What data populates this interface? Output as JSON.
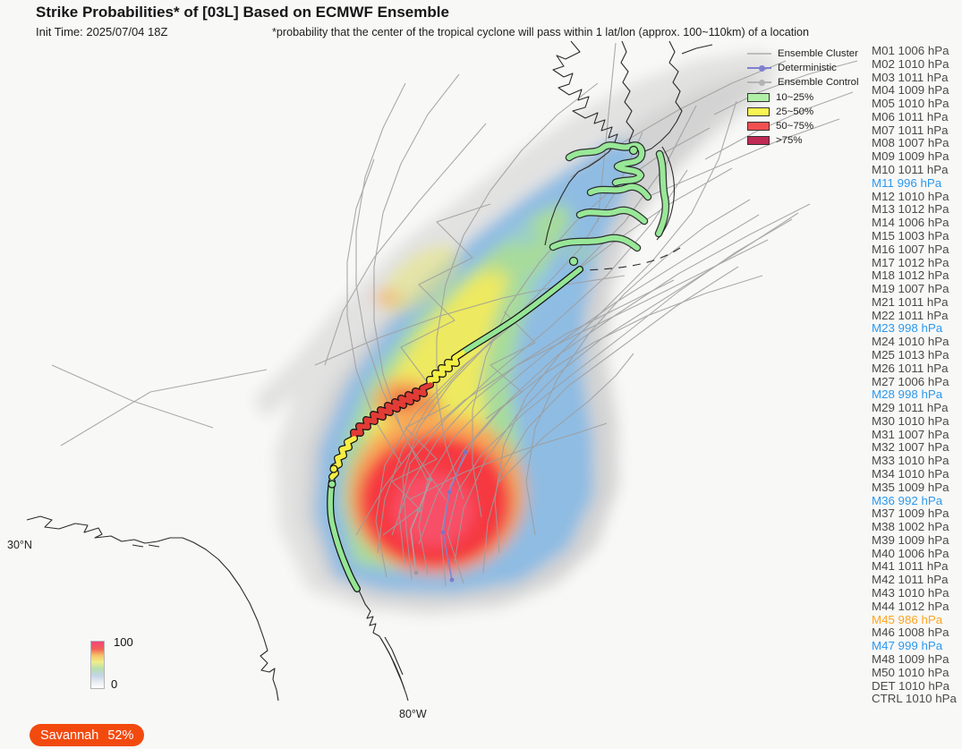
{
  "header": {
    "title": "Strike Probabilities* of [03L] Based on ECMWF Ensemble",
    "init_time": "Init Time: 2025/07/04 18Z",
    "note": "*probability that the center of the tropical cyclone will pass within 1 lat/lon (approx. 100~110km) of a location"
  },
  "legend": {
    "lines": [
      {
        "label": "Ensemble Cluster",
        "color": "#bdbdbd",
        "marker": "none"
      },
      {
        "label": "Deterministic",
        "color": "#7f7fd0",
        "marker": "dot"
      },
      {
        "label": "Ensemble Control",
        "color": "#b3b3b3",
        "marker": "dot"
      }
    ],
    "patches": [
      {
        "label": "10~25%",
        "color": "#b0f0a6"
      },
      {
        "label": "25~50%",
        "color": "#f8f452"
      },
      {
        "label": "50~75%",
        "color": "#f25050"
      },
      {
        "label": ">75%",
        "color": "#c02a55"
      }
    ]
  },
  "colorbar": {
    "max": "100",
    "min": "0"
  },
  "map_labels": {
    "lat": "30°N",
    "lon": "80°W"
  },
  "city_badge": {
    "name": "Savannah",
    "value": "52%",
    "color": "#f24a0e"
  },
  "highlight_colors": {
    "default": "#4a4a4a",
    "blue": "#2b99ee",
    "orange": "#ffa51f"
  },
  "members": [
    {
      "label": "M01 1006 hPa",
      "highlight": "none"
    },
    {
      "label": "M02 1010 hPa",
      "highlight": "none"
    },
    {
      "label": "M03 1011 hPa",
      "highlight": "none"
    },
    {
      "label": "M04 1009 hPa",
      "highlight": "none"
    },
    {
      "label": "M05 1010 hPa",
      "highlight": "none"
    },
    {
      "label": "M06 1011 hPa",
      "highlight": "none"
    },
    {
      "label": "M07 1011 hPa",
      "highlight": "none"
    },
    {
      "label": "M08 1007 hPa",
      "highlight": "none"
    },
    {
      "label": "M09 1009 hPa",
      "highlight": "none"
    },
    {
      "label": "M10 1011 hPa",
      "highlight": "none"
    },
    {
      "label": "M11 996 hPa",
      "highlight": "blue"
    },
    {
      "label": "M12 1010 hPa",
      "highlight": "none"
    },
    {
      "label": "M13 1012 hPa",
      "highlight": "none"
    },
    {
      "label": "M14 1006 hPa",
      "highlight": "none"
    },
    {
      "label": "M15 1003 hPa",
      "highlight": "none"
    },
    {
      "label": "M16 1007 hPa",
      "highlight": "none"
    },
    {
      "label": "M17 1012 hPa",
      "highlight": "none"
    },
    {
      "label": "M18 1012 hPa",
      "highlight": "none"
    },
    {
      "label": "M19 1007 hPa",
      "highlight": "none"
    },
    {
      "label": "M21 1011 hPa",
      "highlight": "none"
    },
    {
      "label": "M22 1011 hPa",
      "highlight": "none"
    },
    {
      "label": "M23 998 hPa",
      "highlight": "blue"
    },
    {
      "label": "M24 1010 hPa",
      "highlight": "none"
    },
    {
      "label": "M25 1013 hPa",
      "highlight": "none"
    },
    {
      "label": "M26 1011 hPa",
      "highlight": "none"
    },
    {
      "label": "M27 1006 hPa",
      "highlight": "none"
    },
    {
      "label": "M28 998 hPa",
      "highlight": "blue"
    },
    {
      "label": "M29 1011 hPa",
      "highlight": "none"
    },
    {
      "label": "M30 1010 hPa",
      "highlight": "none"
    },
    {
      "label": "M31 1007 hPa",
      "highlight": "none"
    },
    {
      "label": "M32 1007 hPa",
      "highlight": "none"
    },
    {
      "label": "M33 1010 hPa",
      "highlight": "none"
    },
    {
      "label": "M34 1010 hPa",
      "highlight": "none"
    },
    {
      "label": "M35 1009 hPa",
      "highlight": "none"
    },
    {
      "label": "M36 992 hPa",
      "highlight": "blue"
    },
    {
      "label": "M37 1009 hPa",
      "highlight": "none"
    },
    {
      "label": "M38 1002 hPa",
      "highlight": "none"
    },
    {
      "label": "M39 1009 hPa",
      "highlight": "none"
    },
    {
      "label": "M40 1006 hPa",
      "highlight": "none"
    },
    {
      "label": "M41 1011 hPa",
      "highlight": "none"
    },
    {
      "label": "M42 1011 hPa",
      "highlight": "none"
    },
    {
      "label": "M43 1010 hPa",
      "highlight": "none"
    },
    {
      "label": "M44 1012 hPa",
      "highlight": "none"
    },
    {
      "label": "M45 986 hPa",
      "highlight": "orange"
    },
    {
      "label": "M46 1008 hPa",
      "highlight": "none"
    },
    {
      "label": "M47 999 hPa",
      "highlight": "blue"
    },
    {
      "label": "M48 1009 hPa",
      "highlight": "none"
    },
    {
      "label": "M50 1010 hPa",
      "highlight": "none"
    },
    {
      "label": "DET 1010 hPa",
      "highlight": "none"
    },
    {
      "label": "CTRL 1010 hPa",
      "highlight": "none"
    }
  ]
}
